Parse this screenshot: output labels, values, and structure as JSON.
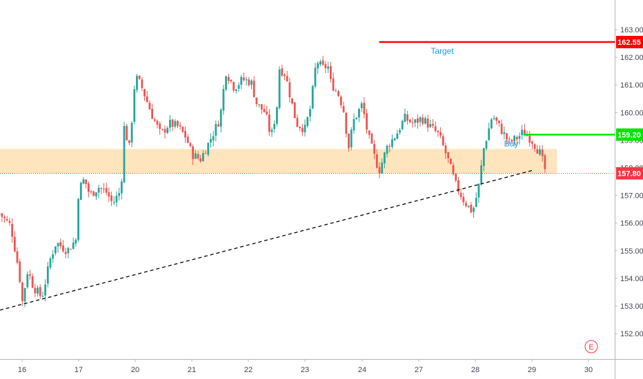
{
  "chart_data": {
    "type": "candlestick",
    "x_ticks": [
      "16",
      "17",
      "20",
      "21",
      "22",
      "23",
      "24",
      "27",
      "28",
      "29",
      "30"
    ],
    "y_ticks": [
      "163.00",
      "162.00",
      "161.00",
      "160.00",
      "159.00",
      "158.00",
      "157.00",
      "156.00",
      "155.00",
      "154.00",
      "153.00",
      "152.00"
    ],
    "ylim": [
      151.7,
      163.55
    ],
    "grid": false,
    "levels": [
      {
        "name": "Target",
        "value": "162.55",
        "color": "#ff0000"
      },
      {
        "name": "Buy",
        "value": "159.20",
        "color": "#00e600"
      }
    ],
    "current_price": {
      "value": "157.80",
      "color": "#f23645"
    },
    "annotations": [
      "Target",
      "Buy"
    ],
    "zone": {
      "from": 157.8,
      "to": 158.68,
      "color": "#ffe0b2"
    },
    "trendline": {
      "style": "dashed",
      "from": {
        "x": "15.6",
        "y": 152.85
      },
      "to": {
        "x": "29.0",
        "y": 157.9
      }
    },
    "earnings_marker": "E",
    "candle_path": [
      [
        15.6,
        156.35
      ],
      [
        15.8,
        155.9
      ],
      [
        15.95,
        154.2
      ],
      [
        16.0,
        153.1
      ],
      [
        16.1,
        154.3
      ],
      [
        16.2,
        153.7
      ],
      [
        16.35,
        153.3
      ],
      [
        16.5,
        154.7
      ],
      [
        16.6,
        155.3
      ],
      [
        16.8,
        155.0
      ],
      [
        16.95,
        155.4
      ],
      [
        17.0,
        157.2
      ],
      [
        17.1,
        157.6
      ],
      [
        17.2,
        157.0
      ],
      [
        17.35,
        157.3
      ],
      [
        17.5,
        157.1
      ],
      [
        17.6,
        156.7
      ],
      [
        17.75,
        157.2
      ],
      [
        17.8,
        159.5
      ],
      [
        17.9,
        158.7
      ],
      [
        18.0,
        161.3
      ],
      [
        18.1,
        161.0
      ],
      [
        18.3,
        159.9
      ],
      [
        18.45,
        159.2
      ],
      [
        18.6,
        159.6
      ],
      [
        18.75,
        159.5
      ],
      [
        18.9,
        159.1
      ],
      [
        19.0,
        158.5
      ],
      [
        19.15,
        158.3
      ],
      [
        19.3,
        158.9
      ],
      [
        19.5,
        159.8
      ],
      [
        19.6,
        161.5
      ],
      [
        19.75,
        160.9
      ],
      [
        19.9,
        161.2
      ],
      [
        20.05,
        161.1
      ],
      [
        20.15,
        160.3
      ],
      [
        20.3,
        160.0
      ],
      [
        20.4,
        159.1
      ],
      [
        20.5,
        160.1
      ],
      [
        20.55,
        161.6
      ],
      [
        20.65,
        161.4
      ],
      [
        20.75,
        160.5
      ],
      [
        20.85,
        159.6
      ],
      [
        21.0,
        159.4
      ],
      [
        21.1,
        160.2
      ],
      [
        21.2,
        161.9
      ],
      [
        21.3,
        161.6
      ],
      [
        21.4,
        161.7
      ],
      [
        21.45,
        161.1
      ],
      [
        21.6,
        160.6
      ],
      [
        21.7,
        159.9
      ],
      [
        21.75,
        158.6
      ],
      [
        21.85,
        159.7
      ],
      [
        22.0,
        160.3
      ],
      [
        22.1,
        159.2
      ],
      [
        22.2,
        158.5
      ],
      [
        22.3,
        157.9
      ],
      [
        22.45,
        158.8
      ],
      [
        22.6,
        159.2
      ],
      [
        22.75,
        159.8
      ],
      [
        22.9,
        159.6
      ],
      [
        23.05,
        159.8
      ],
      [
        23.2,
        159.5
      ],
      [
        23.35,
        159.2
      ],
      [
        23.5,
        158.4
      ],
      [
        23.65,
        157.4
      ],
      [
        23.8,
        156.8
      ],
      [
        23.95,
        156.4
      ],
      [
        24.05,
        157.2
      ],
      [
        24.15,
        158.7
      ],
      [
        24.3,
        159.9
      ],
      [
        24.45,
        159.4
      ],
      [
        24.6,
        158.9
      ],
      [
        24.75,
        159.1
      ],
      [
        24.85,
        159.3
      ],
      [
        25.0,
        159.0
      ],
      [
        25.15,
        158.5
      ],
      [
        25.25,
        157.8
      ]
    ]
  }
}
